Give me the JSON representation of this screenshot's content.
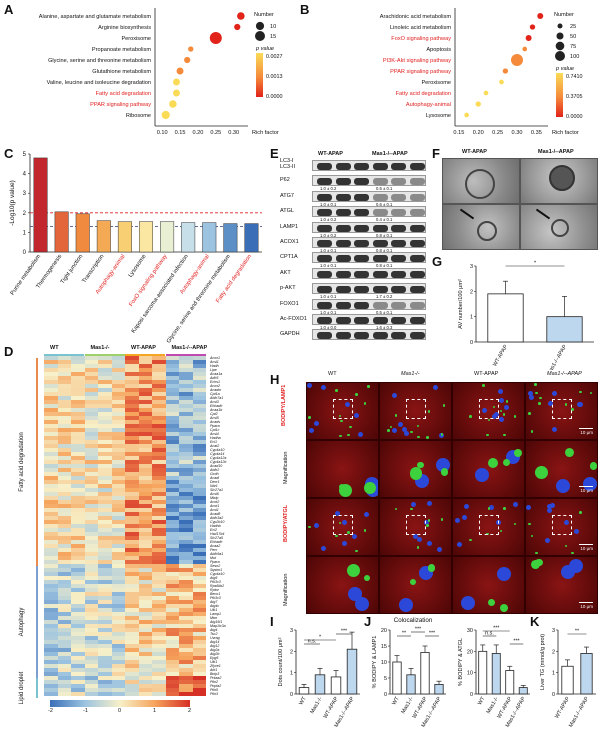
{
  "panels": {
    "A": "A",
    "B": "B",
    "C": "C",
    "D": "D",
    "E": "E",
    "F": "F",
    "G": "G",
    "H": "H",
    "I": "I",
    "J": "J",
    "K": "K"
  },
  "chart_data": [
    {
      "panel": "A",
      "type": "scatter",
      "categories": [
        "Alanine, aspartate and glutamate metabolism",
        "Arginine biosynthesis",
        "Peroxisome",
        "Propanoate metabolism",
        "Glycine, serine and threonine metabolism",
        "Glutathione metabolism",
        "Valine, leucine and isoleucine degradation",
        "Fatty acid degradation",
        "PPAR signaling pathway",
        "Ribosome"
      ],
      "highlight": [
        false,
        false,
        false,
        false,
        false,
        false,
        false,
        true,
        true,
        false
      ],
      "x": [
        0.32,
        0.31,
        0.25,
        0.18,
        0.17,
        0.15,
        0.14,
        0.14,
        0.13,
        0.11
      ],
      "size": [
        6,
        4,
        15,
        3,
        4,
        5,
        5,
        5,
        6,
        7
      ],
      "xlabel": "Rich factor",
      "xticks": [
        "0.10",
        "0.15",
        "0.20",
        "0.25",
        "0.30"
      ],
      "xlim": [
        0.08,
        0.34
      ],
      "size_legend_title": "Number",
      "size_legend": [
        "10",
        "15"
      ],
      "color_legend_title": "p value",
      "color_legend": [
        "0.0027",
        "0.0013",
        "0.0000"
      ]
    },
    {
      "panel": "B",
      "type": "scatter",
      "categories": [
        "Arachidonic acid metabolism",
        "Linoleic acid metabolism",
        "FoxO signaling pathway",
        "Apoptosis",
        "PI3K-Akt signaling pathway",
        "PPAR signaling pathway",
        "Peroxisome",
        "Fatty acid degradation",
        "Autophagy-animal",
        "Lysosome"
      ],
      "highlight": [
        false,
        false,
        true,
        false,
        true,
        true,
        false,
        true,
        true,
        false
      ],
      "x": [
        0.36,
        0.34,
        0.33,
        0.32,
        0.3,
        0.27,
        0.26,
        0.22,
        0.2,
        0.17
      ],
      "size": [
        25,
        20,
        25,
        15,
        100,
        20,
        15,
        15,
        20,
        15
      ],
      "xlabel": "Rich factor",
      "xticks": [
        "0.15",
        "0.20",
        "0.25",
        "0.30",
        "0.35"
      ],
      "xlim": [
        0.14,
        0.38
      ],
      "size_legend_title": "Number",
      "size_legend": [
        "25",
        "50",
        "75",
        "100"
      ],
      "color_legend_title": "p value",
      "color_legend": [
        "0.7410",
        "0.3705",
        "0.0000"
      ]
    },
    {
      "panel": "C",
      "type": "bar",
      "categories": [
        "Purine metabolism",
        "Thermogenesis",
        "Tight junction",
        "Transcription",
        "Autophagy-animal",
        "Lysosome",
        "FoxO signaling pathway",
        "Kaposi sarcoma-associated infection",
        "Autophagy-animal",
        "Glycine, serine and threonine metabolism",
        "Fatty acid degradation"
      ],
      "highlight": [
        false,
        false,
        false,
        false,
        true,
        false,
        true,
        false,
        true,
        false,
        true
      ],
      "values": [
        4.8,
        2.05,
        1.95,
        1.6,
        1.55,
        1.55,
        1.55,
        1.5,
        1.5,
        1.45,
        1.45
      ],
      "ylabel": "-Log10(p value)",
      "yticks": [
        "0",
        "1",
        "2",
        "3",
        "4",
        "5"
      ],
      "ylim": [
        0,
        5
      ]
    },
    {
      "panel": "G",
      "type": "bar",
      "categories": [
        "WT-APAP",
        "Mas1-/--APAP"
      ],
      "values": [
        1.9,
        1.0
      ],
      "errors": [
        0.5,
        0.8
      ],
      "ylabel": "AV number/100 μm²",
      "yticks": [
        "0",
        "1",
        "2",
        "3"
      ],
      "ylim": [
        0,
        3
      ],
      "sig": "*"
    },
    {
      "panel": "I",
      "type": "bar",
      "categories": [
        "WT",
        "Mas1-/-",
        "WT-APAP",
        "Mas1-/--APAP"
      ],
      "values": [
        0.3,
        0.9,
        0.8,
        2.1
      ],
      "errors": [
        0.15,
        0.3,
        0.3,
        0.8
      ],
      "ylabel": "Dots count/100 μm²",
      "yticks": [
        "0",
        "1",
        "2",
        "3"
      ],
      "ylim": [
        0,
        3
      ]
    },
    {
      "panel": "J1",
      "type": "bar",
      "title": "Colocalization",
      "categories": [
        "WT",
        "Mas1-/-",
        "WT-APAP",
        "Mas1-/--APAP"
      ],
      "values": [
        10,
        6,
        13,
        3
      ],
      "errors": [
        2,
        2,
        2,
        1
      ],
      "ylabel": "% BODIPY & LAMP1",
      "yticks": [
        "0",
        "5",
        "10",
        "15",
        "20"
      ],
      "ylim": [
        0,
        20
      ]
    },
    {
      "panel": "J2",
      "type": "bar",
      "categories": [
        "WT",
        "Mas1-/-",
        "WT-APAP",
        "Mas1-/--APAP"
      ],
      "values": [
        20,
        19,
        11,
        3
      ],
      "errors": [
        3,
        4,
        2,
        1
      ],
      "ylabel": "% BODIPY & ATGL",
      "yticks": [
        "0",
        "10",
        "20",
        "30"
      ],
      "ylim": [
        0,
        30
      ]
    },
    {
      "panel": "K",
      "type": "bar",
      "categories": [
        "WT-APAP",
        "Mas1-/--APAP"
      ],
      "values": [
        1.3,
        1.9
      ],
      "errors": [
        0.3,
        0.3
      ],
      "ylabel": "Liver TG (mmol/g prot)",
      "yticks": [
        "0",
        "1",
        "2",
        "3"
      ],
      "ylim": [
        0,
        3
      ],
      "sig": "**"
    }
  ],
  "blot": {
    "groups": [
      "WT-APAP",
      "Mas1-/--APAP"
    ],
    "rows": [
      {
        "label": "LC3-I\nLC3-II",
        "q1": "",
        "q2": ""
      },
      {
        "label": "P62",
        "q1": "1.0 ± 0.2",
        "q2": "0.5 ± 0.1"
      },
      {
        "label": "ATG7",
        "q1": "1.0 ± 0.1",
        "q2": "0.6 ± 0.1"
      },
      {
        "label": "ATGL",
        "q1": "1.0 ± 0.2",
        "q2": "0.4 ± 0.1"
      },
      {
        "label": "LAMP1",
        "q1": "1.0 ± 0.2",
        "q2": "0.8 ± 0.1"
      },
      {
        "label": "ACOX1",
        "q1": "1.0 ± 0.1",
        "q2": "0.8 ± 0.1"
      },
      {
        "label": "CPT1A",
        "q1": "1.0 ± 0.1",
        "q2": "0.8 ± 0.1"
      },
      {
        "label": "AKT",
        "q1": "",
        "": "",
        "q2": ""
      },
      {
        "label": "p-AKT",
        "q1": "1.0 ± 0.1",
        "q2": "1.7 ± 0.2"
      },
      {
        "label": "FOXO1",
        "q1": "1.0 ± 0.1",
        "q2": "0.5 ± 0.1"
      },
      {
        "label": "Ac-FOXO1",
        "q1": "1.0 ± 0.0",
        "q2": "1.6 ± 0.3"
      },
      {
        "label": "GAPDH",
        "q1": "",
        "q2": ""
      }
    ]
  },
  "panelF": {
    "col1": "WT-APAP",
    "col2": "Mas1-/--APAP"
  },
  "panelD": {
    "columns": [
      "WT",
      "Mas1-/-",
      "WT-APAP",
      "Mas1-/--APAP"
    ],
    "groups": [
      "Fatty acid degradation",
      "Autophagy",
      "Lipid droplet"
    ],
    "genes": [
      "Acox1",
      "Acsl1",
      "Hadh",
      "Lipe",
      "Acaa1a",
      "Adh5",
      "Echs1",
      "Acox2",
      "Acadm",
      "Cpt1a",
      "Aldh7a1",
      "Acsl3",
      "Ehhadh",
      "Acaa1b",
      "Cpt2",
      "Acsl5",
      "Acads",
      "Ppara",
      "Cpt1c",
      "Acsl4",
      "Hadha",
      "Eci1",
      "Acat2",
      "Cyp4a10",
      "Cyp4a14",
      "Cyp4a12a",
      "Cyp4a12b",
      "Acad10",
      "Aldh2",
      "Gcdh",
      "Acadl",
      "Decr1",
      "Nbr1",
      "Slc27a1",
      "Acsl6",
      "Mlxip",
      "Acot2",
      "Acot1",
      "Acsl1",
      "Acad8",
      "Aldh3a2",
      "Cyp2b10",
      "Hadhb",
      "Eci2",
      "Hsd17b4",
      "Slc27a5",
      "Ehhadh",
      "Acaa2",
      "Pecr",
      "Aldh9a1",
      "Mut",
      "Ppara",
      "Sesn2",
      "Sqstm1",
      "Cyp4a10",
      "Atg5",
      "Pik3c3",
      "Rps6kb2",
      "Rptor",
      "Becn1",
      "Pik3c3",
      "Atg7",
      "Atg4c",
      "Ulk1",
      "Lamp1",
      "Mtor",
      "Atg16l1",
      "Map1lc3a",
      "Atg4",
      "Tsc2",
      "Uvrag",
      "Atg14",
      "Atg12",
      "Atg2a",
      "Atg2b",
      "Epg5",
      "Ulk1",
      "Zfyve1",
      "Akt1",
      "Bnip3",
      "Prkaa2",
      "Plin2",
      "Pnpla2",
      "Plin5",
      "Plin3"
    ],
    "legend": [
      "-2",
      "-1",
      "0",
      "1",
      "2"
    ]
  },
  "panelH": {
    "columns": [
      "WT",
      "Mas1-/-",
      "WT-APAP",
      "Mas1-/--APAP"
    ],
    "row1": "BODIPY/LAMP1",
    "row2": "Magnification",
    "row3": "BODIPY/ATGL",
    "row4": "Magnification",
    "scale1": "10 μm",
    "scale2": "10 μm",
    "scale3": "10 μm",
    "scale4": "10 μm"
  },
  "sig_labels": {
    "I": [
      "*",
      "n.s.",
      "***"
    ],
    "J1": [
      "**",
      "***",
      "***"
    ],
    "J2": [
      "n.s.",
      "***",
      "***"
    ]
  },
  "colors": {
    "bar_white": "#ffffff",
    "bar_blue": "#bdd7ee",
    "heat_low": "#3a6fb8",
    "heat_mid": "#f7f0c8",
    "heat_high": "#d62f26",
    "bubble_red": "#e2231a",
    "bubble_orange": "#f58b3a",
    "bubble_yellow": "#fadb57",
    "highlight_text": "#e02020",
    "dashed_red": "#e02020",
    "dashed_blue": "#2a3f7a",
    "fluor_bg": "#6a0a0a",
    "fluor_green": "#3dd13d",
    "fluor_blue": "#2c48d8",
    "col_wt": "#79c2d0",
    "col_mas1": "#9ed16b",
    "col_wtapap": "#f5a623",
    "col_mas1apap": "#c04ab0"
  }
}
